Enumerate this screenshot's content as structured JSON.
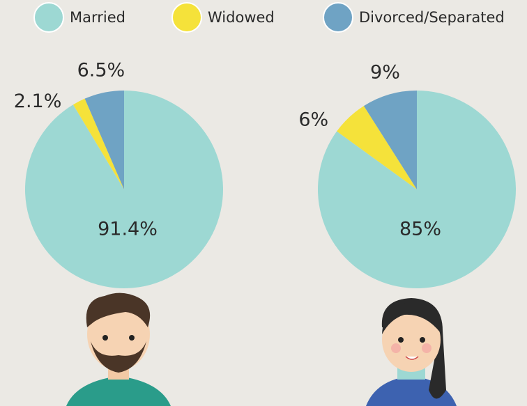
{
  "chart_data": [
    {
      "type": "pie",
      "categories": [
        "Married",
        "Widowed",
        "Divorced/Separated"
      ],
      "values": [
        91.4,
        2.1,
        6.5
      ],
      "value_labels": [
        "91.4%",
        "2.1%",
        "6.5%"
      ],
      "colors": [
        "#9dd8d3",
        "#f5e23a",
        "#6fa3c4"
      ]
    },
    {
      "type": "pie",
      "categories": [
        "Married",
        "Widowed",
        "Divorced/Separated"
      ],
      "values": [
        85,
        6,
        9
      ],
      "value_labels": [
        "85%",
        "6%",
        "9%"
      ],
      "colors": [
        "#9dd8d3",
        "#f5e23a",
        "#6fa3c4"
      ]
    }
  ]
}
